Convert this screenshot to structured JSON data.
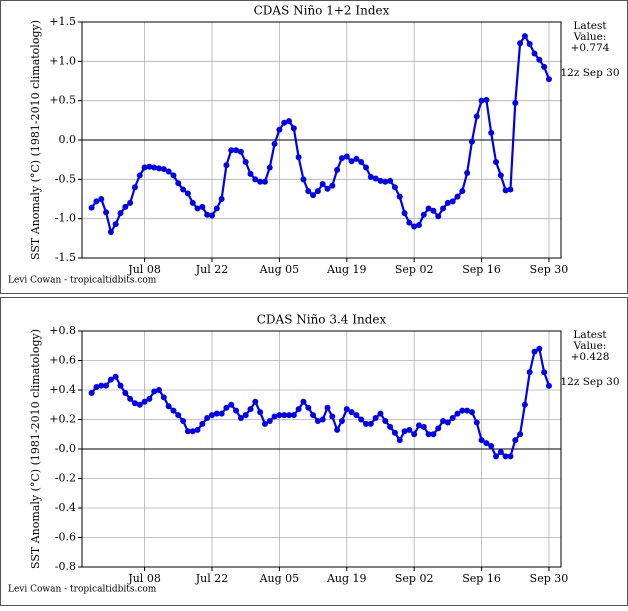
{
  "chart_data": [
    {
      "type": "line",
      "title": "CDAS Niño 1+2 Index",
      "ylabel": "SST Anomaly (°C) (1981-2010 climatology)",
      "annotation": [
        "Latest",
        "Value:",
        "+0.774"
      ],
      "time_label": "12z Sep 30",
      "credit": "Levi Cowan - tropicaltidbits.com",
      "grid": true,
      "xlim": [
        176,
        275.5
      ],
      "ylim": [
        -1.5,
        1.5
      ],
      "xticks": [
        {
          "value": 189,
          "label": "Jul 08"
        },
        {
          "value": 203,
          "label": "Jul 22"
        },
        {
          "value": 217,
          "label": "Aug 05"
        },
        {
          "value": 231,
          "label": "Aug 19"
        },
        {
          "value": 245,
          "label": "Sep 02"
        },
        {
          "value": 259,
          "label": "Sep 16"
        },
        {
          "value": 273,
          "label": "Sep 30"
        }
      ],
      "yticks": [
        {
          "value": 1.5,
          "label": "+1.5"
        },
        {
          "value": 1.0,
          "label": "+1.0"
        },
        {
          "value": 0.5,
          "label": "+0.5"
        },
        {
          "value": 0,
          "label": "0.0"
        },
        {
          "value": -0.5,
          "label": "-0.5"
        },
        {
          "value": -1.0,
          "label": "-1.0"
        },
        {
          "value": -1.5,
          "label": "-1.5"
        }
      ],
      "x": [
        178,
        179,
        180,
        181,
        182,
        183,
        184,
        185,
        186,
        187,
        188,
        189,
        190,
        191,
        192,
        193,
        194,
        195,
        196,
        197,
        198,
        199,
        200,
        201,
        202,
        203,
        204,
        205,
        206,
        207,
        208,
        209,
        210,
        211,
        212,
        213,
        214,
        215,
        216,
        217,
        218,
        219,
        220,
        221,
        222,
        223,
        224,
        225,
        226,
        227,
        228,
        229,
        230,
        231,
        232,
        233,
        234,
        235,
        236,
        237,
        238,
        239,
        240,
        241,
        242,
        243,
        244,
        245,
        246,
        247,
        248,
        249,
        250,
        251,
        252,
        253,
        254,
        255,
        256,
        257,
        258,
        259,
        260,
        261,
        262,
        263,
        264,
        265,
        266,
        267,
        268,
        269,
        270,
        271,
        272,
        273
      ],
      "series": [
        {
          "color": "#0000ee",
          "values": [
            -0.86,
            -0.78,
            -0.75,
            -0.92,
            -1.17,
            -1.07,
            -0.93,
            -0.85,
            -0.8,
            -0.6,
            -0.45,
            -0.35,
            -0.34,
            -0.35,
            -0.36,
            -0.37,
            -0.4,
            -0.45,
            -0.55,
            -0.63,
            -0.68,
            -0.8,
            -0.87,
            -0.85,
            -0.95,
            -0.96,
            -0.87,
            -0.75,
            -0.32,
            -0.13,
            -0.13,
            -0.15,
            -0.28,
            -0.43,
            -0.5,
            -0.53,
            -0.53,
            -0.35,
            -0.05,
            0.13,
            0.22,
            0.24,
            0.15,
            -0.22,
            -0.5,
            -0.65,
            -0.7,
            -0.65,
            -0.56,
            -0.62,
            -0.58,
            -0.38,
            -0.23,
            -0.21,
            -0.27,
            -0.24,
            -0.28,
            -0.35,
            -0.47,
            -0.49,
            -0.52,
            -0.53,
            -0.52,
            -0.6,
            -0.72,
            -0.93,
            -1.05,
            -1.1,
            -1.08,
            -0.95,
            -0.87,
            -0.9,
            -0.97,
            -0.87,
            -0.8,
            -0.78,
            -0.72,
            -0.65,
            -0.42,
            -0.02,
            0.3,
            0.5,
            0.51,
            0.09,
            -0.28,
            -0.45,
            -0.64,
            -0.63,
            0.47,
            1.23,
            1.32,
            1.22,
            1.1,
            1.02,
            0.93,
            0.774
          ]
        }
      ]
    },
    {
      "type": "line",
      "title": "CDAS Niño 3.4 Index",
      "ylabel": "SST Anomaly (°C) (1981-2010 climatology)",
      "annotation": [
        "Latest",
        "Value:",
        "+0.428"
      ],
      "time_label": "12z Sep 30",
      "credit": "Levi Cowan - tropicaltidbits.com",
      "grid": true,
      "xlim": [
        176,
        275.5
      ],
      "ylim": [
        -0.8,
        0.8
      ],
      "xticks": [
        {
          "value": 189,
          "label": "Jul 08"
        },
        {
          "value": 203,
          "label": "Jul 22"
        },
        {
          "value": 217,
          "label": "Aug 05"
        },
        {
          "value": 231,
          "label": "Aug 19"
        },
        {
          "value": 245,
          "label": "Sep 02"
        },
        {
          "value": 259,
          "label": "Sep 16"
        },
        {
          "value": 273,
          "label": "Sep 30"
        }
      ],
      "yticks": [
        {
          "value": 0.8,
          "label": "+0.8"
        },
        {
          "value": 0.6,
          "label": "+0.6"
        },
        {
          "value": 0.4,
          "label": "+0.4"
        },
        {
          "value": 0.2,
          "label": "+0.2"
        },
        {
          "value": 0,
          "label": "-0.0"
        },
        {
          "value": -0.2,
          "label": "-0.2"
        },
        {
          "value": -0.4,
          "label": "-0.4"
        },
        {
          "value": -0.6,
          "label": "-0.6"
        },
        {
          "value": -0.8,
          "label": "-0.8"
        }
      ],
      "x": [
        178,
        179,
        180,
        181,
        182,
        183,
        184,
        185,
        186,
        187,
        188,
        189,
        190,
        191,
        192,
        193,
        194,
        195,
        196,
        197,
        198,
        199,
        200,
        201,
        202,
        203,
        204,
        205,
        206,
        207,
        208,
        209,
        210,
        211,
        212,
        213,
        214,
        215,
        216,
        217,
        218,
        219,
        220,
        221,
        222,
        223,
        224,
        225,
        226,
        227,
        228,
        229,
        230,
        231,
        232,
        233,
        234,
        235,
        236,
        237,
        238,
        239,
        240,
        241,
        242,
        243,
        244,
        245,
        246,
        247,
        248,
        249,
        250,
        251,
        252,
        253,
        254,
        255,
        256,
        257,
        258,
        259,
        260,
        261,
        262,
        263,
        264,
        265,
        266,
        267,
        268,
        269,
        270,
        271,
        272,
        273
      ],
      "series": [
        {
          "color": "#0000ee",
          "values": [
            0.38,
            0.42,
            0.43,
            0.43,
            0.47,
            0.49,
            0.43,
            0.38,
            0.34,
            0.31,
            0.3,
            0.32,
            0.34,
            0.39,
            0.4,
            0.35,
            0.29,
            0.26,
            0.23,
            0.19,
            0.12,
            0.12,
            0.13,
            0.17,
            0.21,
            0.23,
            0.24,
            0.24,
            0.28,
            0.3,
            0.26,
            0.21,
            0.23,
            0.27,
            0.32,
            0.25,
            0.17,
            0.19,
            0.22,
            0.23,
            0.23,
            0.23,
            0.23,
            0.27,
            0.32,
            0.28,
            0.23,
            0.19,
            0.2,
            0.28,
            0.22,
            0.13,
            0.19,
            0.27,
            0.25,
            0.23,
            0.2,
            0.17,
            0.17,
            0.21,
            0.24,
            0.19,
            0.15,
            0.11,
            0.06,
            0.12,
            0.13,
            0.1,
            0.16,
            0.15,
            0.1,
            0.1,
            0.14,
            0.19,
            0.18,
            0.21,
            0.24,
            0.26,
            0.26,
            0.25,
            0.18,
            0.06,
            0.04,
            0.02,
            -0.05,
            -0.02,
            -0.05,
            -0.05,
            0.06,
            0.1,
            0.3,
            0.52,
            0.66,
            0.68,
            0.52,
            0.428
          ]
        }
      ]
    }
  ]
}
